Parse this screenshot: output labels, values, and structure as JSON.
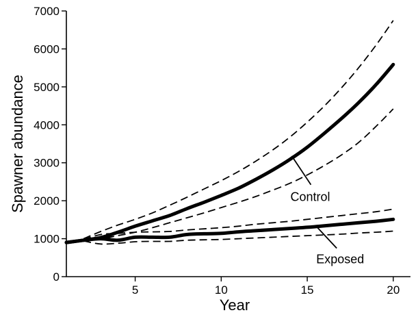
{
  "chart_data": {
    "type": "line",
    "title": "",
    "xlabel": "Year",
    "ylabel": "Spawner abundance",
    "xlim": [
      1,
      21
    ],
    "ylim": [
      0,
      7000
    ],
    "xticks": [
      5,
      10,
      15,
      20
    ],
    "yticks": [
      0,
      1000,
      2000,
      3000,
      4000,
      5000,
      6000,
      7000
    ],
    "grid": false,
    "series": [
      {
        "name": "Control",
        "style": "solid",
        "x": [
          1,
          2,
          3,
          4,
          5,
          6,
          7,
          8,
          9,
          10,
          11,
          12,
          13,
          14,
          15,
          16,
          17,
          18,
          19,
          20
        ],
        "y": [
          900,
          960,
          1030,
          1170,
          1330,
          1470,
          1610,
          1790,
          1960,
          2140,
          2330,
          2560,
          2810,
          3090,
          3410,
          3780,
          4170,
          4590,
          5060,
          5590
        ]
      },
      {
        "name": "Control upper",
        "style": "dashed",
        "x": [
          2,
          3,
          4,
          5,
          6,
          7,
          8,
          9,
          10,
          11,
          12,
          13,
          14,
          15,
          16,
          17,
          18,
          19,
          20
        ],
        "y": [
          1000,
          1190,
          1360,
          1510,
          1680,
          1880,
          2090,
          2310,
          2530,
          2770,
          3040,
          3340,
          3680,
          4070,
          4500,
          4980,
          5510,
          6100,
          6750
        ]
      },
      {
        "name": "Control lower",
        "style": "dashed",
        "x": [
          2,
          3,
          4,
          5,
          6,
          7,
          8,
          9,
          10,
          11,
          12,
          13,
          14,
          15,
          16,
          17,
          18,
          19,
          20
        ],
        "y": [
          960,
          1000,
          1080,
          1170,
          1290,
          1420,
          1550,
          1680,
          1820,
          1960,
          2110,
          2280,
          2460,
          2680,
          2930,
          3210,
          3540,
          3960,
          4420
        ]
      },
      {
        "name": "Exposed",
        "style": "solid",
        "x": [
          1,
          2,
          3,
          4,
          5,
          6,
          7,
          8,
          9,
          10,
          11,
          12,
          13,
          14,
          15,
          16,
          17,
          18,
          19,
          20
        ],
        "y": [
          900,
          960,
          1000,
          960,
          1040,
          1040,
          1040,
          1110,
          1130,
          1140,
          1180,
          1210,
          1240,
          1270,
          1300,
          1340,
          1380,
          1420,
          1460,
          1510
        ]
      },
      {
        "name": "Exposed upper",
        "style": "dashed",
        "x": [
          2,
          3,
          4,
          5,
          6,
          7,
          8,
          9,
          10,
          11,
          12,
          13,
          14,
          15,
          16,
          17,
          18,
          19,
          20
        ],
        "y": [
          980,
          1110,
          1140,
          1170,
          1180,
          1190,
          1230,
          1260,
          1290,
          1330,
          1380,
          1420,
          1460,
          1510,
          1560,
          1610,
          1660,
          1710,
          1780
        ]
      },
      {
        "name": "Exposed lower",
        "style": "dashed",
        "x": [
          2,
          3,
          4,
          5,
          6,
          7,
          8,
          9,
          10,
          11,
          12,
          13,
          14,
          15,
          16,
          17,
          18,
          19,
          20
        ],
        "y": [
          940,
          860,
          880,
          920,
          930,
          930,
          960,
          970,
          980,
          1000,
          1020,
          1040,
          1060,
          1080,
          1100,
          1120,
          1150,
          1170,
          1200
        ]
      }
    ],
    "annotations": [
      {
        "text": "Control",
        "series": "Control",
        "x": 14.1,
        "y": 3180
      },
      {
        "text": "Exposed",
        "series": "Exposed",
        "x": 15.6,
        "y": 1290
      }
    ]
  }
}
